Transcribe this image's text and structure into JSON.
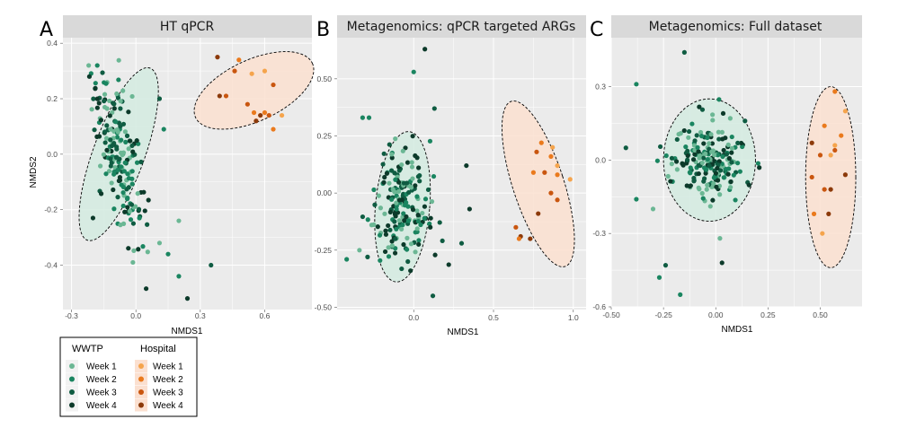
{
  "colors": {
    "wwtp": [
      "#6bb794",
      "#1a8560",
      "#0f5c42",
      "#0c3a2a"
    ],
    "hospital": [
      "#f5a44c",
      "#ea7a1d",
      "#c9560f",
      "#8c3a0a"
    ],
    "wwtp_ellipse_fill": "#d4ebe0",
    "hospital_ellipse_fill": "#fbe0d0",
    "panel_bg": "#ebebeb",
    "strip_bg": "#d9d9d9",
    "grid": "#ffffff"
  },
  "legend": {
    "wwtp_title": "WWTP",
    "hospital_title": "Hospital",
    "weeks": [
      "Week 1",
      "Week 2",
      "Week 3",
      "Week 4"
    ]
  },
  "chart_data": [
    {
      "type": "scatter",
      "letter": "A",
      "title": "HT qPCR",
      "xlabel": "NMDS1",
      "ylabel": "NMDS2",
      "xlim": [
        -0.34,
        0.82
      ],
      "ylim": [
        -0.56,
        0.42
      ],
      "xticks": [
        -0.3,
        0.0,
        0.3,
        0.6
      ],
      "xtick_labels": [
        "-0.3",
        "0.0",
        "0.3",
        "0.6"
      ],
      "yticks": [
        -0.4,
        -0.2,
        0.0,
        0.2,
        0.4
      ],
      "ytick_labels": [
        "-0.4",
        "-0.2",
        "0.0",
        "0.2",
        "0.4"
      ],
      "wwtp_ellipse": {
        "cx": -0.08,
        "cy": 0.0,
        "rx": 0.12,
        "ry": 0.33,
        "angle_deg": 20
      },
      "hospital_ellipse": {
        "cx": 0.55,
        "cy": 0.23,
        "rx": 0.3,
        "ry": 0.11,
        "angle_deg": -25
      },
      "wwtp_cluster": {
        "count": 190,
        "seed": 11,
        "sx": 0.055,
        "sy": 0.14,
        "rho": -0.55
      },
      "wwtp_outliers": [
        {
          "x": -0.22,
          "y": 0.32,
          "w": 0
        },
        {
          "x": -0.18,
          "y": 0.32,
          "w": 1
        },
        {
          "x": 0.11,
          "y": 0.2,
          "w": 2
        },
        {
          "x": 0.11,
          "y": -0.32,
          "w": 0
        },
        {
          "x": 0.2,
          "y": -0.24,
          "w": 0
        },
        {
          "x": 0.2,
          "y": -0.44,
          "w": 1
        },
        {
          "x": 0.35,
          "y": -0.4,
          "w": 2
        },
        {
          "x": 0.24,
          "y": -0.52,
          "w": 3
        },
        {
          "x": 0.15,
          "y": -0.36,
          "w": 1
        },
        {
          "x": -0.2,
          "y": -0.23,
          "w": 3
        },
        {
          "x": 0.13,
          "y": 0.09,
          "w": 1
        }
      ],
      "hospital_points": [
        {
          "x": 0.38,
          "y": 0.35,
          "w": 3
        },
        {
          "x": 0.48,
          "y": 0.34,
          "w": 1
        },
        {
          "x": 0.46,
          "y": 0.3,
          "w": 2
        },
        {
          "x": 0.54,
          "y": 0.29,
          "w": 0
        },
        {
          "x": 0.6,
          "y": 0.3,
          "w": 0
        },
        {
          "x": 0.64,
          "y": 0.25,
          "w": 2
        },
        {
          "x": 0.39,
          "y": 0.21,
          "w": 3
        },
        {
          "x": 0.42,
          "y": 0.21,
          "w": 2
        },
        {
          "x": 0.52,
          "y": 0.18,
          "w": 2
        },
        {
          "x": 0.55,
          "y": 0.15,
          "w": 1
        },
        {
          "x": 0.58,
          "y": 0.14,
          "w": 3
        },
        {
          "x": 0.6,
          "y": 0.15,
          "w": 1
        },
        {
          "x": 0.62,
          "y": 0.14,
          "w": 2
        },
        {
          "x": 0.68,
          "y": 0.14,
          "w": 0
        },
        {
          "x": 0.64,
          "y": 0.09,
          "w": 1
        },
        {
          "x": 0.56,
          "y": 0.12,
          "w": 3
        }
      ]
    },
    {
      "type": "scatter",
      "letter": "B",
      "title": "Metagenomics: qPCR targeted ARGs",
      "xlabel": "NMDS1",
      "ylabel": "",
      "xlim": [
        -0.48,
        1.08
      ],
      "ylim": [
        -0.51,
        0.68
      ],
      "xticks": [
        0.0,
        0.5,
        1.0
      ],
      "xtick_labels": [
        "0.0",
        "0.5",
        "1.0"
      ],
      "yticks": [
        -0.5,
        -0.25,
        0.0,
        0.25,
        0.5
      ],
      "ytick_labels": [
        "-0.50",
        "-0.25",
        "0.00",
        "0.25",
        "0.50"
      ],
      "wwtp_ellipse": {
        "cx": -0.07,
        "cy": -0.06,
        "rx": 0.17,
        "ry": 0.33,
        "angle_deg": 5
      },
      "hospital_ellipse": {
        "cx": 0.78,
        "cy": 0.04,
        "rx": 0.16,
        "ry": 0.38,
        "angle_deg": -18
      },
      "wwtp_cluster": {
        "count": 190,
        "seed": 23,
        "sx": 0.085,
        "sy": 0.12,
        "rho": -0.15
      },
      "wwtp_outliers": [
        {
          "x": 0.07,
          "y": 0.63,
          "w": 3
        },
        {
          "x": 0.0,
          "y": 0.53,
          "w": 1
        },
        {
          "x": 0.12,
          "y": -0.45,
          "w": 2
        },
        {
          "x": -0.42,
          "y": -0.29,
          "w": 1
        },
        {
          "x": -0.34,
          "y": -0.25,
          "w": 0
        },
        {
          "x": 0.33,
          "y": 0.12,
          "w": 3
        },
        {
          "x": 0.35,
          "y": -0.07,
          "w": 3
        },
        {
          "x": -0.32,
          "y": 0.33,
          "w": 1
        },
        {
          "x": -0.28,
          "y": 0.33,
          "w": 1
        },
        {
          "x": 0.13,
          "y": 0.37,
          "w": 2
        },
        {
          "x": 0.3,
          "y": -0.22,
          "w": 2
        },
        {
          "x": -0.02,
          "y": -0.34,
          "w": 3
        }
      ],
      "hospital_points": [
        {
          "x": 0.8,
          "y": 0.22,
          "w": 1
        },
        {
          "x": 0.87,
          "y": 0.2,
          "w": 0
        },
        {
          "x": 0.77,
          "y": 0.18,
          "w": 2
        },
        {
          "x": 0.86,
          "y": 0.16,
          "w": 1
        },
        {
          "x": 0.9,
          "y": 0.12,
          "w": 0
        },
        {
          "x": 0.75,
          "y": 0.09,
          "w": 1
        },
        {
          "x": 0.82,
          "y": 0.09,
          "w": 2
        },
        {
          "x": 0.9,
          "y": 0.08,
          "w": 1
        },
        {
          "x": 0.98,
          "y": 0.06,
          "w": 0
        },
        {
          "x": 0.86,
          "y": 0.0,
          "w": 2
        },
        {
          "x": 0.9,
          "y": -0.03,
          "w": 2
        },
        {
          "x": 0.78,
          "y": -0.09,
          "w": 3
        },
        {
          "x": 0.64,
          "y": -0.15,
          "w": 2
        },
        {
          "x": 0.73,
          "y": -0.2,
          "w": 3
        },
        {
          "x": 0.67,
          "y": -0.19,
          "w": 3
        },
        {
          "x": 0.66,
          "y": -0.2,
          "w": 1
        }
      ]
    },
    {
      "type": "scatter",
      "letter": "C",
      "title": "Metagenomics: Full dataset",
      "xlabel": "NMDS1",
      "ylabel": "",
      "xlim": [
        -0.5,
        0.7
      ],
      "ylim": [
        -0.6,
        0.5
      ],
      "xticks": [
        -0.5,
        -0.25,
        0.0,
        0.25,
        0.5
      ],
      "xtick_labels": [
        "-0.50",
        "-0.25",
        "0.00",
        "0.25",
        "0.50"
      ],
      "yticks": [
        -0.6,
        -0.3,
        0.0,
        0.3
      ],
      "ytick_labels": [
        "-0.6",
        "-0.3",
        "0.0",
        "0.3"
      ],
      "wwtp_ellipse": {
        "cx": -0.03,
        "cy": 0.0,
        "rx": 0.22,
        "ry": 0.25,
        "angle_deg": 0
      },
      "hospital_ellipse": {
        "cx": 0.55,
        "cy": -0.07,
        "rx": 0.12,
        "ry": 0.37,
        "angle_deg": 0
      },
      "wwtp_cluster": {
        "count": 200,
        "seed": 37,
        "sx": 0.085,
        "sy": 0.085,
        "rho": 0.0
      },
      "wwtp_outliers": [
        {
          "x": -0.45,
          "y": 0.53,
          "w": 3
        },
        {
          "x": -0.15,
          "y": 0.44,
          "w": 2
        },
        {
          "x": -0.43,
          "y": 0.05,
          "w": 2
        },
        {
          "x": -0.38,
          "y": 0.31,
          "w": 1
        },
        {
          "x": -0.38,
          "y": -0.16,
          "w": 1
        },
        {
          "x": -0.24,
          "y": -0.43,
          "w": 2
        },
        {
          "x": -0.27,
          "y": -0.48,
          "w": 1
        },
        {
          "x": -0.17,
          "y": -0.55,
          "w": 1
        },
        {
          "x": 0.03,
          "y": -0.42,
          "w": 3
        },
        {
          "x": 0.14,
          "y": 0.16,
          "w": 2
        },
        {
          "x": 0.02,
          "y": -0.32,
          "w": 0
        },
        {
          "x": -0.3,
          "y": -0.2,
          "w": 0
        }
      ],
      "hospital_points": [
        {
          "x": 0.62,
          "y": 0.2,
          "w": 0
        },
        {
          "x": 0.57,
          "y": 0.28,
          "w": 1
        },
        {
          "x": 0.52,
          "y": 0.14,
          "w": 1
        },
        {
          "x": 0.6,
          "y": 0.1,
          "w": 1
        },
        {
          "x": 0.57,
          "y": 0.06,
          "w": 0
        },
        {
          "x": 0.46,
          "y": 0.07,
          "w": 3
        },
        {
          "x": 0.57,
          "y": 0.04,
          "w": 2
        },
        {
          "x": 0.55,
          "y": 0.02,
          "w": 0
        },
        {
          "x": 0.5,
          "y": 0.02,
          "w": 2
        },
        {
          "x": 0.46,
          "y": -0.07,
          "w": 2
        },
        {
          "x": 0.62,
          "y": -0.06,
          "w": 3
        },
        {
          "x": 0.52,
          "y": -0.12,
          "w": 2
        },
        {
          "x": 0.55,
          "y": -0.12,
          "w": 3
        },
        {
          "x": 0.54,
          "y": -0.22,
          "w": 3
        },
        {
          "x": 0.47,
          "y": -0.22,
          "w": 1
        },
        {
          "x": 0.51,
          "y": -0.3,
          "w": 0
        }
      ]
    }
  ]
}
